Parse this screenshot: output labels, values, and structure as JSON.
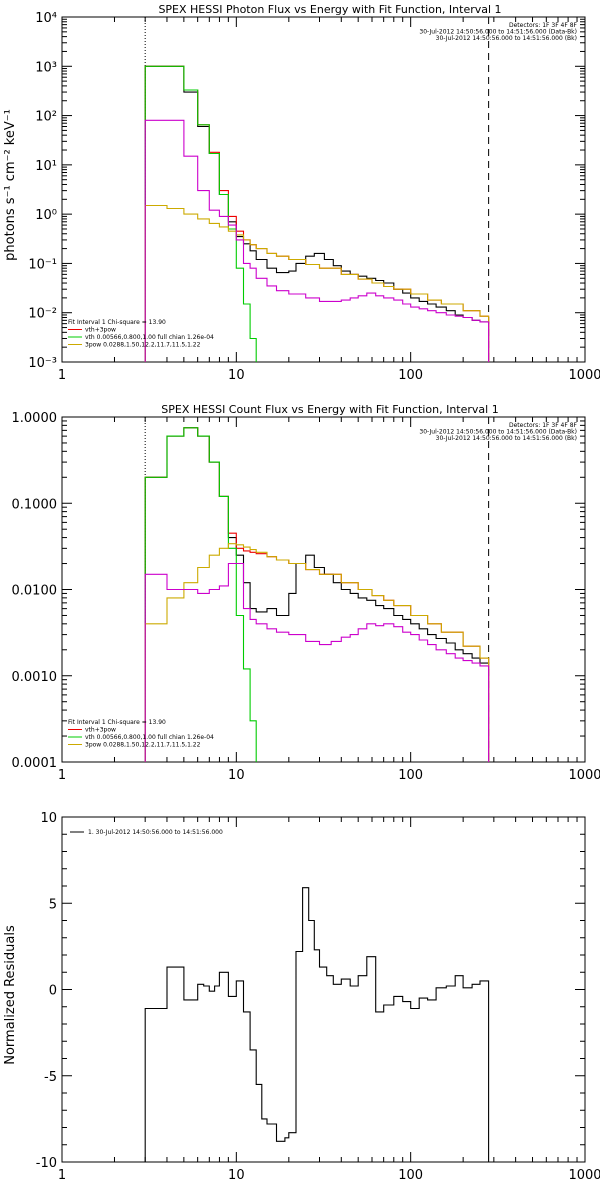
{
  "chart_data": [
    {
      "type": "line",
      "title": "SPEX HESSI Photon Flux vs Energy with Fit Function, Interval 1",
      "ylabel": "photons s⁻¹ cm⁻² keV⁻¹",
      "xlabel": "",
      "x_scale": "log",
      "y_scale": "log",
      "xlim": [
        1,
        1000
      ],
      "ylim": [
        0.001,
        10000
      ],
      "x_ticks": [
        1,
        10,
        100,
        1000
      ],
      "x_tick_labels": [
        "1",
        "10",
        "100",
        "1000"
      ],
      "y_ticks": [
        0.001,
        0.01,
        0.1,
        1,
        10,
        100,
        1000,
        10000
      ],
      "y_tick_labels": [
        "10⁻³",
        "10⁻²",
        "10⁻¹",
        "10⁰",
        "10¹",
        "10²",
        "10³",
        "10⁴"
      ],
      "vlines": [
        {
          "x": 3,
          "style": "dotted",
          "color": "#000000"
        },
        {
          "x": 280,
          "style": "dashed",
          "color": "#000000"
        }
      ],
      "legend_top_right": [
        {
          "text": "Detectors: 1F 3F 4F 8F",
          "color": "#000000"
        },
        {
          "text": "30-Jul-2012 14:50:56.000 to 14:51:56.000 (Data-Bk)",
          "color": "#000000"
        },
        {
          "text": "30-Jul-2012 14:50:56.000 to 14:51:56.000 (Bk)",
          "color": "#cc00cc"
        }
      ],
      "legend_bottom_left": [
        {
          "text": "Fit Interval 1   Chi-square = 13.90",
          "color": "#000000"
        },
        {
          "text": "vth+3pow",
          "color": "#ee0000"
        },
        {
          "text": "vth 0.00566,0.800,1.00  full chian 1.26e-04",
          "color": "#00cc00"
        },
        {
          "text": "3pow 0.0288,1.50,12.2,11.7,11.5,1.22",
          "color": "#ccaa00"
        }
      ],
      "series": [
        {
          "name": "Data-Bk",
          "color": "#000000",
          "x": [
            3,
            4,
            5,
            6,
            7,
            8,
            9,
            10,
            11,
            12,
            13,
            15,
            17,
            20,
            22,
            25,
            28,
            32,
            36,
            40,
            45,
            50,
            56,
            63,
            70,
            80,
            90,
            100,
            112,
            125,
            140,
            160,
            180,
            200,
            225,
            250,
            280
          ],
          "y": [
            1000,
            1000,
            300,
            60,
            17,
            2.5,
            0.7,
            0.35,
            0.25,
            0.18,
            0.12,
            0.08,
            0.065,
            0.07,
            0.1,
            0.14,
            0.16,
            0.12,
            0.09,
            0.07,
            0.06,
            0.055,
            0.05,
            0.045,
            0.04,
            0.03,
            0.025,
            0.02,
            0.017,
            0.015,
            0.013,
            0.011,
            0.009,
            0.008,
            0.007,
            0.0065,
            0.006
          ]
        },
        {
          "name": "vth+3pow",
          "color": "#ee0000",
          "x": [
            3,
            4,
            5,
            6,
            7,
            8,
            9,
            10,
            11,
            12,
            13,
            15,
            17,
            20,
            25,
            30,
            40,
            50,
            60,
            70,
            80,
            100,
            125,
            150,
            200,
            250,
            280
          ],
          "y": [
            1000,
            1000,
            330,
            65,
            18,
            3,
            0.9,
            0.45,
            0.3,
            0.24,
            0.2,
            0.16,
            0.14,
            0.12,
            0.095,
            0.08,
            0.06,
            0.048,
            0.04,
            0.034,
            0.03,
            0.024,
            0.018,
            0.015,
            0.011,
            0.0085,
            0.0075
          ]
        },
        {
          "name": "vth",
          "color": "#00cc00",
          "x": [
            3,
            4,
            5,
            6,
            7,
            8,
            9,
            10,
            11,
            12,
            13
          ],
          "y": [
            1000,
            1000,
            330,
            65,
            17,
            2.5,
            0.5,
            0.08,
            0.015,
            0.003,
            0.0008
          ]
        },
        {
          "name": "3pow",
          "color": "#ccaa00",
          "x": [
            3,
            4,
            5,
            6,
            7,
            8,
            9,
            10,
            11,
            12,
            13,
            15,
            17,
            20,
            25,
            30,
            40,
            50,
            60,
            70,
            80,
            100,
            125,
            150,
            200,
            250,
            280
          ],
          "y": [
            1.5,
            1.3,
            1.0,
            0.8,
            0.65,
            0.55,
            0.45,
            0.38,
            0.3,
            0.24,
            0.2,
            0.16,
            0.14,
            0.12,
            0.095,
            0.08,
            0.06,
            0.048,
            0.04,
            0.034,
            0.03,
            0.024,
            0.018,
            0.015,
            0.011,
            0.0085,
            0.0075
          ]
        },
        {
          "name": "Bk",
          "color": "#cc00cc",
          "x": [
            3,
            4,
            5,
            6,
            7,
            8,
            9,
            10,
            11,
            12,
            13,
            15,
            17,
            20,
            25,
            30,
            35,
            40,
            45,
            50,
            56,
            63,
            70,
            80,
            90,
            100,
            112,
            125,
            140,
            160,
            180,
            200,
            225,
            250,
            280
          ],
          "y": [
            80,
            80,
            15,
            3,
            1.2,
            0.9,
            0.6,
            0.3,
            0.1,
            0.08,
            0.05,
            0.035,
            0.028,
            0.024,
            0.02,
            0.017,
            0.017,
            0.018,
            0.02,
            0.022,
            0.025,
            0.022,
            0.02,
            0.018,
            0.015,
            0.013,
            0.012,
            0.011,
            0.01,
            0.009,
            0.0085,
            0.008,
            0.007,
            0.0065,
            0.006
          ]
        }
      ]
    },
    {
      "type": "line",
      "title": "SPEX HESSI Count Flux vs Energy with Fit Function, Interval 1",
      "ylabel": "",
      "xlabel": "",
      "x_scale": "log",
      "y_scale": "log",
      "xlim": [
        1,
        1000
      ],
      "ylim": [
        0.0001,
        1
      ],
      "x_ticks": [
        1,
        10,
        100,
        1000
      ],
      "x_tick_labels": [
        "1",
        "10",
        "100",
        "1000"
      ],
      "y_ticks": [
        0.0001,
        0.001,
        0.01,
        0.1,
        1
      ],
      "y_tick_labels": [
        "0.0001",
        "0.0010",
        "0.0100",
        "0.1000",
        "1.0000"
      ],
      "vlines": [
        {
          "x": 3,
          "style": "dotted",
          "color": "#000000"
        },
        {
          "x": 280,
          "style": "dashed",
          "color": "#000000"
        }
      ],
      "legend_top_right": [
        {
          "text": "Detectors: 1F 3F 4F 8F",
          "color": "#000000"
        },
        {
          "text": "30-Jul-2012 14:50:56.000 to 14:51:56.000 (Data-Bk)",
          "color": "#000000"
        },
        {
          "text": "30-Jul-2012 14:50:56.000 to 14:51:56.000 (Bk)",
          "color": "#cc00cc"
        }
      ],
      "legend_bottom_left": [
        {
          "text": "Fit Interval 1   Chi-square = 13.90",
          "color": "#000000"
        },
        {
          "text": "vth+3pow",
          "color": "#ee0000"
        },
        {
          "text": "vth 0.00566,0.800,1.00  full chian 1.26e-04",
          "color": "#00cc00"
        },
        {
          "text": "3pow 0.0288,1.50,12.2,11.7,11.5,1.22",
          "color": "#ccaa00"
        }
      ],
      "series": [
        {
          "name": "Data-Bk",
          "color": "#000000",
          "x": [
            3,
            4,
            5,
            6,
            7,
            8,
            9,
            10,
            11,
            12,
            13,
            15,
            17,
            20,
            22,
            25,
            28,
            32,
            36,
            40,
            45,
            50,
            56,
            63,
            70,
            80,
            90,
            100,
            112,
            125,
            140,
            160,
            180,
            200,
            225,
            250,
            280
          ],
          "y": [
            0.2,
            0.6,
            0.75,
            0.6,
            0.3,
            0.12,
            0.04,
            0.025,
            0.012,
            0.006,
            0.0055,
            0.006,
            0.005,
            0.009,
            0.02,
            0.025,
            0.018,
            0.015,
            0.012,
            0.01,
            0.009,
            0.008,
            0.0075,
            0.0065,
            0.006,
            0.005,
            0.0045,
            0.004,
            0.0035,
            0.003,
            0.0027,
            0.0024,
            0.002,
            0.0018,
            0.0016,
            0.0014,
            0.0013
          ]
        },
        {
          "name": "vth+3pow",
          "color": "#ee0000",
          "x": [
            3,
            4,
            5,
            6,
            7,
            8,
            9,
            10,
            11,
            12,
            13,
            15,
            17,
            20,
            25,
            30,
            40,
            50,
            60,
            70,
            80,
            100,
            125,
            150,
            200,
            250,
            280
          ],
          "y": [
            0.2,
            0.6,
            0.75,
            0.6,
            0.3,
            0.12,
            0.045,
            0.03,
            0.028,
            0.027,
            0.026,
            0.024,
            0.022,
            0.02,
            0.017,
            0.015,
            0.012,
            0.01,
            0.0085,
            0.0075,
            0.0065,
            0.005,
            0.004,
            0.0032,
            0.0022,
            0.0016,
            0.0013
          ]
        },
        {
          "name": "vth",
          "color": "#00cc00",
          "x": [
            3,
            4,
            5,
            6,
            7,
            8,
            9,
            10,
            11,
            12,
            13
          ],
          "y": [
            0.2,
            0.6,
            0.75,
            0.6,
            0.3,
            0.12,
            0.03,
            0.005,
            0.0012,
            0.0003,
            8e-05
          ]
        },
        {
          "name": "3pow",
          "color": "#ccaa00",
          "x": [
            3,
            4,
            5,
            6,
            7,
            8,
            9,
            10,
            11,
            12,
            13,
            15,
            17,
            20,
            25,
            30,
            40,
            50,
            60,
            70,
            80,
            100,
            125,
            150,
            200,
            250,
            280
          ],
          "y": [
            0.004,
            0.008,
            0.012,
            0.018,
            0.025,
            0.03,
            0.034,
            0.033,
            0.031,
            0.029,
            0.027,
            0.024,
            0.022,
            0.02,
            0.017,
            0.015,
            0.012,
            0.01,
            0.0085,
            0.0075,
            0.0065,
            0.005,
            0.004,
            0.0032,
            0.0022,
            0.0016,
            0.0013
          ]
        },
        {
          "name": "Bk",
          "color": "#cc00cc",
          "x": [
            3,
            4,
            5,
            6,
            7,
            8,
            9,
            10,
            11,
            12,
            13,
            15,
            17,
            20,
            25,
            30,
            35,
            40,
            45,
            50,
            56,
            63,
            70,
            80,
            90,
            100,
            112,
            125,
            140,
            160,
            180,
            200,
            225,
            250,
            280
          ],
          "y": [
            0.015,
            0.01,
            0.01,
            0.009,
            0.01,
            0.011,
            0.02,
            0.02,
            0.006,
            0.0045,
            0.004,
            0.0035,
            0.0032,
            0.003,
            0.0025,
            0.0023,
            0.0025,
            0.0028,
            0.003,
            0.0035,
            0.004,
            0.0038,
            0.004,
            0.0037,
            0.0032,
            0.003,
            0.0026,
            0.0023,
            0.002,
            0.0018,
            0.0016,
            0.0015,
            0.0014,
            0.0013,
            0.0012
          ]
        }
      ]
    },
    {
      "type": "line",
      "title": "",
      "ylabel": "Normalized Residuals",
      "xlabel": "",
      "x_scale": "log",
      "y_scale": "linear",
      "xlim": [
        1,
        1000
      ],
      "ylim": [
        -10,
        10
      ],
      "x_ticks": [
        1,
        10,
        100,
        1000
      ],
      "x_tick_labels": [
        "1",
        "10",
        "100",
        "1000"
      ],
      "y_ticks": [
        -10,
        -5,
        0,
        5,
        10
      ],
      "y_tick_labels": [
        "-10",
        "-5",
        "0",
        "5",
        "10"
      ],
      "legend_top_left": [
        {
          "text": "1. 30-Jul-2012 14:50:56.000 to 14:51:56.000",
          "color": "#000000"
        }
      ],
      "series": [
        {
          "name": "1. 30-Jul-2012 14:50:56.000 to 14:51:56.000",
          "color": "#000000",
          "x": [
            3,
            4,
            4.5,
            5,
            6,
            6.5,
            7,
            7.5,
            8,
            9,
            10,
            11,
            12,
            13,
            14,
            15,
            17,
            19,
            20,
            22,
            24,
            26,
            28,
            30,
            33,
            36,
            40,
            45,
            50,
            56,
            63,
            70,
            80,
            90,
            100,
            112,
            125,
            140,
            160,
            180,
            200,
            225,
            250,
            280
          ],
          "y": [
            -1.1,
            1.3,
            1.3,
            -0.6,
            0.3,
            0.2,
            -0.1,
            0.2,
            1.0,
            -0.4,
            0.5,
            -1.3,
            -3.5,
            -5.5,
            -7.5,
            -7.8,
            -8.8,
            -8.6,
            -8.3,
            2.2,
            5.9,
            4.0,
            2.3,
            1.3,
            0.8,
            0.3,
            0.6,
            0.2,
            0.8,
            1.9,
            -1.3,
            -0.9,
            -0.4,
            -0.7,
            -1.1,
            -0.5,
            -0.6,
            0.1,
            0.2,
            0.8,
            0.1,
            0.3,
            0.5,
            -10
          ]
        }
      ]
    }
  ]
}
